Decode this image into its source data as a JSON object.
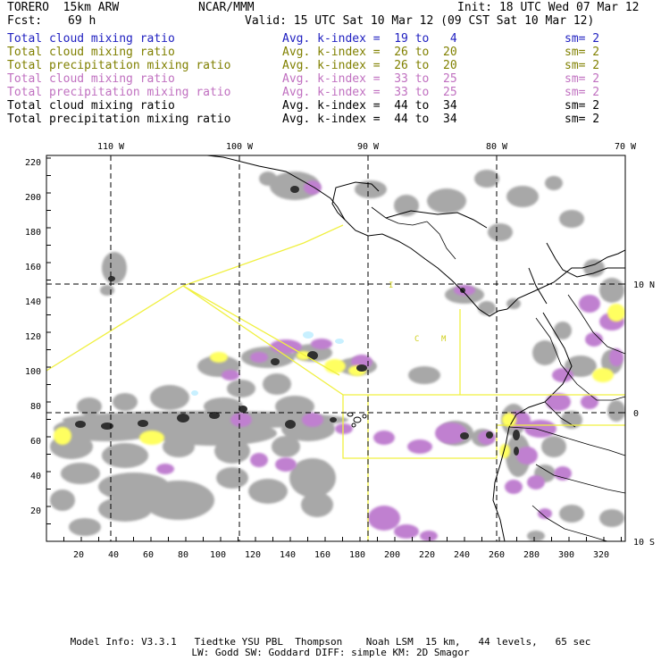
{
  "header": {
    "model": "TORERO  15km ARW",
    "org": "NCAR/MMM",
    "init": "Init: 18 UTC Wed 07 Mar 12",
    "fcst_label": "Fcst:",
    "fcst_value": "69 h",
    "valid": "Valid: 15 UTC Sat 10 Mar 12 (09 CST Sat 10 Mar 12)"
  },
  "legend": [
    {
      "name": "Total cloud mixing ratio",
      "avg": "Avg. k-index =  19 to   4",
      "sm": "sm= 2",
      "color": "#2020c0"
    },
    {
      "name": "Total cloud mixing ratio",
      "avg": "Avg. k-index =  26 to  20",
      "sm": "sm= 2",
      "color": "#808000"
    },
    {
      "name": "Total precipitation mixing ratio",
      "avg": "Avg. k-index =  26 to  20",
      "sm": "sm= 2",
      "color": "#808000"
    },
    {
      "name": "Total cloud mixing ratio",
      "avg": "Avg. k-index =  33 to  25",
      "sm": "sm= 2",
      "color": "#c070c0"
    },
    {
      "name": "Total precipitation mixing ratio",
      "avg": "Avg. k-index =  33 to  25",
      "sm": "sm= 2",
      "color": "#c070c0"
    },
    {
      "name": "Total cloud mixing ratio",
      "avg": "Avg. k-index =  44 to  34",
      "sm": "sm= 2",
      "color": "#000000"
    },
    {
      "name": "Total precipitation mixing ratio",
      "avg": "Avg. k-index =  44 to  34",
      "sm": "sm= 2",
      "color": "#000000"
    }
  ],
  "axes": {
    "top_lon": [
      "110 W",
      "100 W",
      "90 W",
      "80 W",
      "70 W"
    ],
    "right_lat": [
      "10 N",
      "0",
      "10 S"
    ],
    "left_y": [
      "220",
      "200",
      "180",
      "160",
      "140",
      "120",
      "100",
      "80",
      "60",
      "40",
      "20"
    ],
    "bottom_x": [
      "20",
      "40",
      "60",
      "80",
      "100",
      "120",
      "140",
      "160",
      "180",
      "200",
      "220",
      "240",
      "260",
      "280",
      "300",
      "320"
    ]
  },
  "colors": {
    "gray_cloud": "#a8a8a8",
    "dark_core": "#303030",
    "magenta": "#c080d0",
    "yellow": "#ffff60",
    "cyan": "#c8f0ff",
    "outline": "#f0f040"
  },
  "map_labels": [
    "C",
    "M",
    "I"
  ],
  "footer": {
    "line1": "Model Info: V3.3.1   Tiedtke YSU PBL  Thompson    Noah LSM  15 km,   44 levels,   65 sec",
    "line2": "LW: Godd SW: Goddard DIFF: simple KM: 2D Smagor"
  }
}
